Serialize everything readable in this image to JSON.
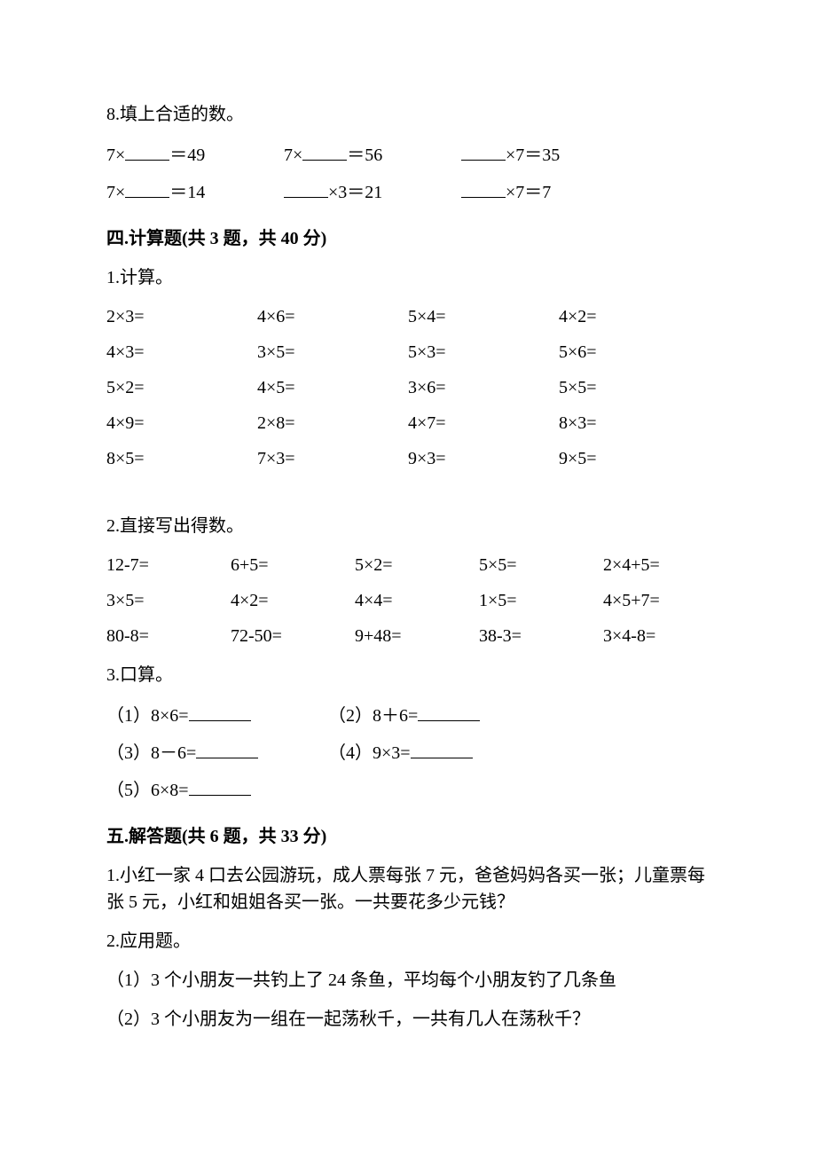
{
  "q8": {
    "title": "8.填上合适的数。",
    "rows": [
      [
        "7×",
        "＝49",
        "7×",
        "＝56",
        "",
        "×7＝35"
      ],
      [
        "7×",
        "＝14",
        "",
        "×3＝21",
        "",
        "×7＝7"
      ]
    ]
  },
  "section4": {
    "title": "四.计算题(共 3 题，共 40 分)",
    "q1": {
      "title": "1.计算。",
      "rows": [
        [
          "2×3=",
          "4×6=",
          "5×4=",
          "4×2="
        ],
        [
          "4×3=",
          "3×5=",
          "5×3=",
          "5×6="
        ],
        [
          "5×2=",
          "4×5=",
          "3×6=",
          "5×5="
        ],
        [
          "4×9=",
          "2×8=",
          "4×7=",
          "8×3="
        ],
        [
          "8×5=",
          "7×3=",
          "9×3=",
          "9×5="
        ]
      ]
    },
    "q2": {
      "title": "2.直接写出得数。",
      "rows": [
        [
          "12-7=",
          "6+5=",
          "5×2=",
          "5×5=",
          "2×4+5="
        ],
        [
          "3×5=",
          "4×2=",
          "4×4=",
          "1×5=",
          "4×5+7="
        ],
        [
          "80-8=",
          "72-50=",
          "9+48=",
          "38-3=",
          "3×4-8="
        ]
      ]
    },
    "q3": {
      "title": "3.口算。",
      "items": [
        [
          "（1）8×6=",
          "（2）8＋6="
        ],
        [
          "（3）8－6=",
          "（4）9×3="
        ],
        [
          "（5）6×8="
        ]
      ]
    }
  },
  "section5": {
    "title": "五.解答题(共 6 题，共 33 分)",
    "q1a": "1.小红一家 4 口去公园游玩，成人票每张 7 元，爸爸妈妈各买一张；儿童票每",
    "q1b": "张 5 元，小红和姐姐各买一张。一共要花多少元钱？",
    "q2": "2.应用题。",
    "q2a": "（1）3 个小朋友一共钓上了 24 条鱼，平均每个小朋友钓了几条鱼",
    "q2b": "（2）3 个小朋友为一组在一起荡秋千，一共有几人在荡秋千？"
  }
}
